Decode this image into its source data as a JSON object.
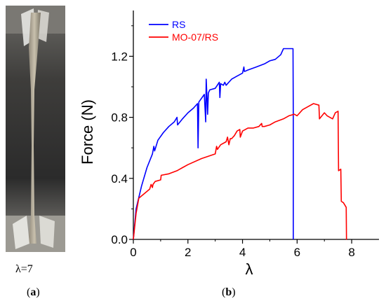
{
  "panel_a": {
    "photo_caption": "λ=7",
    "label": "a"
  },
  "panel_b": {
    "label": "b"
  },
  "chart_data": {
    "type": "line",
    "title": "",
    "xlabel": "λ",
    "ylabel": "Force (N)",
    "xlim": [
      0,
      9
    ],
    "ylim": [
      0,
      1.5
    ],
    "x_ticks": [
      0,
      2,
      4,
      6,
      8
    ],
    "x_tick_labels": [
      "0",
      "2",
      "4",
      "6",
      "8"
    ],
    "y_ticks": [
      0.0,
      0.4,
      0.8,
      1.2
    ],
    "y_tick_labels": [
      "0.0",
      "0.4",
      "0.8",
      "1.2"
    ],
    "grid": false,
    "legend_position": "top-left",
    "series": [
      {
        "name": "RS",
        "color": "#0000ff",
        "x": [
          0.0,
          0.1,
          0.3,
          0.5,
          0.7,
          0.75,
          0.78,
          0.9,
          1.1,
          1.3,
          1.5,
          1.6,
          1.62,
          1.8,
          2.0,
          2.2,
          2.35,
          2.37,
          2.4,
          2.6,
          2.65,
          2.67,
          2.7,
          2.72,
          2.75,
          2.8,
          3.0,
          3.15,
          3.17,
          3.2,
          3.3,
          3.35,
          3.4,
          3.6,
          3.8,
          4.0,
          4.05,
          4.07,
          4.2,
          4.5,
          4.8,
          5.0,
          5.2,
          5.4,
          5.5,
          5.85,
          5.86,
          5.86
        ],
        "values": [
          0.0,
          0.2,
          0.35,
          0.47,
          0.56,
          0.61,
          0.58,
          0.65,
          0.7,
          0.74,
          0.77,
          0.8,
          0.75,
          0.79,
          0.83,
          0.86,
          0.89,
          0.6,
          0.9,
          0.95,
          0.77,
          1.05,
          0.92,
          0.82,
          0.96,
          0.98,
          0.99,
          1.03,
          0.93,
          1.02,
          1.01,
          1.03,
          1.01,
          1.05,
          1.07,
          1.09,
          1.13,
          1.1,
          1.11,
          1.13,
          1.15,
          1.17,
          1.18,
          1.21,
          1.25,
          1.25,
          0.8,
          0.0
        ]
      },
      {
        "name": "MO-07/RS",
        "color": "#ff0000",
        "x": [
          0.0,
          0.1,
          0.2,
          0.4,
          0.6,
          0.65,
          0.7,
          0.72,
          0.8,
          1.0,
          1.02,
          1.3,
          1.6,
          1.8,
          2.0,
          2.5,
          3.0,
          3.05,
          3.08,
          3.2,
          3.4,
          3.45,
          3.5,
          3.55,
          3.6,
          3.7,
          3.8,
          3.9,
          3.92,
          4.0,
          4.2,
          4.4,
          4.6,
          4.7,
          4.72,
          4.8,
          5.0,
          5.2,
          5.5,
          5.7,
          5.9,
          6.0,
          6.2,
          6.4,
          6.6,
          6.8,
          6.82,
          7.0,
          7.1,
          7.3,
          7.4,
          7.5,
          7.52,
          7.6,
          7.62,
          7.7,
          7.8,
          7.81,
          7.82
        ],
        "values": [
          0.0,
          0.17,
          0.27,
          0.3,
          0.33,
          0.36,
          0.34,
          0.36,
          0.38,
          0.39,
          0.42,
          0.43,
          0.45,
          0.47,
          0.49,
          0.53,
          0.56,
          0.61,
          0.59,
          0.62,
          0.64,
          0.67,
          0.62,
          0.66,
          0.66,
          0.68,
          0.71,
          0.72,
          0.67,
          0.71,
          0.73,
          0.73,
          0.74,
          0.76,
          0.74,
          0.74,
          0.75,
          0.77,
          0.79,
          0.81,
          0.82,
          0.81,
          0.85,
          0.87,
          0.89,
          0.88,
          0.79,
          0.83,
          0.81,
          0.79,
          0.83,
          0.84,
          0.45,
          0.46,
          0.25,
          0.24,
          0.21,
          0.0,
          0.0
        ]
      }
    ]
  }
}
